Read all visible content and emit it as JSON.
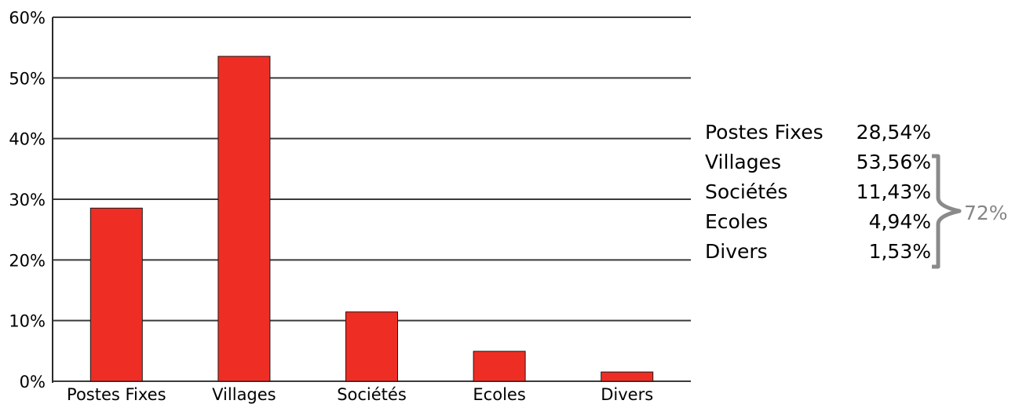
{
  "chart_data": {
    "type": "bar",
    "categories": [
      "Postes Fixes",
      "Villages",
      "Sociétés",
      "Ecoles",
      "Divers"
    ],
    "values": [
      28.54,
      53.56,
      11.43,
      4.94,
      1.53
    ],
    "ylim": [
      0,
      60
    ],
    "yticks": [
      0,
      10,
      20,
      30,
      40,
      50,
      60
    ],
    "ytick_labels": [
      "0%",
      "10%",
      "20%",
      "30%",
      "40%",
      "50%",
      "60%"
    ],
    "grid": true,
    "colors": {
      "bar": "#ee2e24",
      "bar_stroke": "#1a1a1a",
      "grid": "#3a3a3a",
      "brace": "#8a8a8a"
    },
    "breakdown": [
      {
        "label": "Postes Fixes",
        "value": "28,54%"
      },
      {
        "label": "Villages",
        "value": "53,56%"
      },
      {
        "label": "Sociétés",
        "value": "11,43%"
      },
      {
        "label": "Ecoles",
        "value": "4,94%"
      },
      {
        "label": "Divers",
        "value": "1,53%"
      }
    ],
    "brace_total": "72%"
  }
}
